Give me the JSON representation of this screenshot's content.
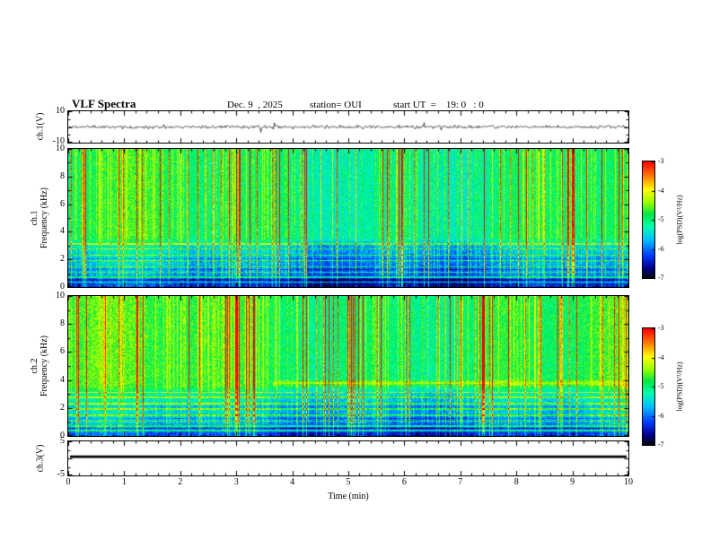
{
  "header": {
    "title": "VLF Spectra",
    "date": "Dec. 9  , 2025",
    "station": "station= OUI",
    "start_ut": "start UT  =    19: 0   : 0"
  },
  "axes": {
    "xlabel": "Time (min)",
    "xticks": [
      "0",
      "1",
      "2",
      "3",
      "4",
      "5",
      "6",
      "7",
      "8",
      "9",
      "10"
    ]
  },
  "panels": {
    "ch1_wave": {
      "ylabel": "ch.1(V)",
      "ymax": "10",
      "ymin": "-10"
    },
    "ch1_spec": {
      "channel": "ch.1",
      "axis": "Frequency (kHz)",
      "yticks": [
        "10",
        "8",
        "6",
        "4",
        "2",
        "0"
      ]
    },
    "ch2_spec": {
      "channel": "ch.2",
      "axis": "Frequency (kHz)",
      "yticks": [
        "10",
        "8",
        "6",
        "4",
        "2",
        "0"
      ]
    },
    "ch3_wave": {
      "ylabel": "ch.3(V)",
      "ymax": "5",
      "ymin": "-5"
    }
  },
  "colorbar": {
    "label": "log(PSD)(V²/Hz)",
    "ticks": [
      "-3",
      "-4",
      "-5",
      "-6",
      "-7"
    ]
  },
  "chart_data": [
    {
      "panel": "ch1_waveform",
      "type": "line",
      "xlim": [
        0,
        10
      ],
      "xunit": "min",
      "ylim": [
        -10,
        10
      ],
      "yunit": "V",
      "ylabel": "ch.1(V)",
      "yticks_labeled": [
        10,
        -10
      ],
      "description": "continuous black broadband noise trace centred on 0 V, typical excursions about ±2 V with sporadic impulsive spikes toward ±6 V over the full 10 minutes"
    },
    {
      "panel": "ch1_spectrogram",
      "type": "heatmap",
      "xlim": [
        0,
        10
      ],
      "ylim": [
        0,
        10
      ],
      "ylabel": "ch.1 Frequency (kHz)",
      "yticks": [
        0,
        2,
        4,
        6,
        8,
        10
      ],
      "zlabel": "log(PSD)(V²/Hz)",
      "zlim": [
        -7,
        -3
      ],
      "colormap": "jet-like (black/dark blue at -7 through blue, cyan, green, yellow to red at -3)",
      "features": [
        "background near -5 (bright green/cyan) above ~3.5 kHz",
        "dense vertical sferic streaks reaching -3 (yellow/red) at all frequencies throughout the record",
        "blue band near -6 between ~1 and 3 kHz crossed by narrow horizontal green lines",
        "dark blue/black band near -7 below ~1 kHz"
      ]
    },
    {
      "panel": "ch2_spectrogram",
      "type": "heatmap",
      "xlim": [
        0,
        10
      ],
      "ylim": [
        0,
        10
      ],
      "ylabel": "ch.2 Frequency (kHz)",
      "yticks": [
        0,
        2,
        4,
        6,
        8,
        10
      ],
      "zlabel": "log(PSD)(V²/Hz)",
      "zlim": [
        -7,
        -3
      ],
      "colormap": "jet-like (black/dark blue at -7 through blue, cyan, green, yellow to red at -3)",
      "features": [
        "same sferic-filled green background as ch.1",
        "persistent yellow-green horizontal emission line near 3.8 kHz from about t = 3.7 min to the end of the record",
        "blue band below ~3 kHz with narrow horizontal green lines",
        "dark blue/black band below ~1 kHz"
      ]
    },
    {
      "panel": "ch3_waveform",
      "type": "line",
      "xlim": [
        0,
        10
      ],
      "ylim": [
        -5,
        5
      ],
      "yunit": "V",
      "ylabel": "ch.3(V)",
      "yticks_labeled": [
        5,
        -5
      ],
      "description": "flat thick black line at roughly +0.5 V across the whole 10 minutes"
    }
  ]
}
